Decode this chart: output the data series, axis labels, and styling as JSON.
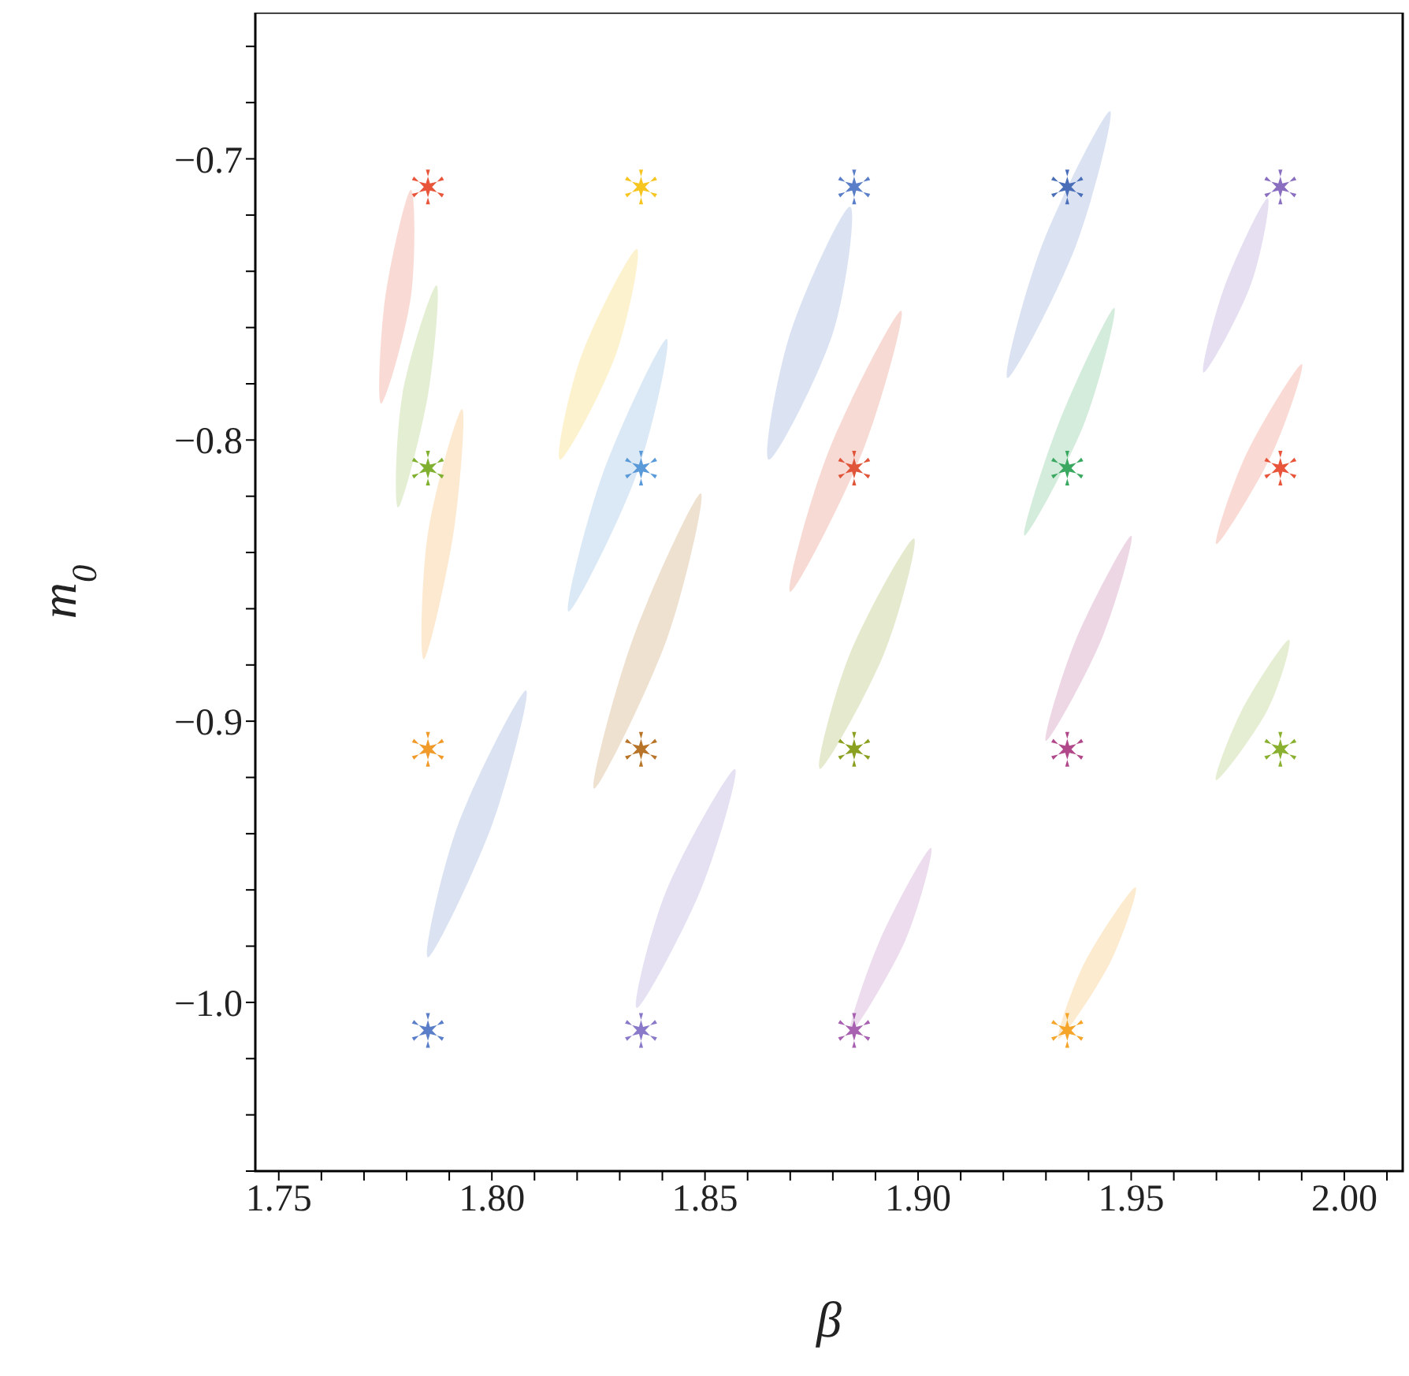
{
  "chart_data": {
    "type": "scatter",
    "xlabel": "β",
    "ylabel": "m$_{0}$",
    "xlim": [
      1.7445,
      2.0137
    ],
    "ylim": [
      -1.06,
      -0.648
    ],
    "xticks": [
      {
        "value": 1.75,
        "label": "1.75"
      },
      {
        "value": 1.76,
        "label": null
      },
      {
        "value": 1.77,
        "label": null
      },
      {
        "value": 1.78,
        "label": null
      },
      {
        "value": 1.79,
        "label": null
      },
      {
        "value": 1.8,
        "label": "1.80"
      },
      {
        "value": 1.81,
        "label": null
      },
      {
        "value": 1.82,
        "label": null
      },
      {
        "value": 1.83,
        "label": null
      },
      {
        "value": 1.84,
        "label": null
      },
      {
        "value": 1.85,
        "label": "1.85"
      },
      {
        "value": 1.86,
        "label": null
      },
      {
        "value": 1.87,
        "label": null
      },
      {
        "value": 1.88,
        "label": null
      },
      {
        "value": 1.89,
        "label": null
      },
      {
        "value": 1.9,
        "label": "1.90"
      },
      {
        "value": 1.91,
        "label": null
      },
      {
        "value": 1.92,
        "label": null
      },
      {
        "value": 1.93,
        "label": null
      },
      {
        "value": 1.94,
        "label": null
      },
      {
        "value": 1.95,
        "label": "1.95"
      },
      {
        "value": 1.96,
        "label": null
      },
      {
        "value": 1.97,
        "label": null
      },
      {
        "value": 1.98,
        "label": null
      },
      {
        "value": 1.99,
        "label": null
      },
      {
        "value": 2.0,
        "label": "2.00"
      },
      {
        "value": 2.01,
        "label": null
      }
    ],
    "yticks": [
      {
        "value": -1.06,
        "label": null
      },
      {
        "value": -1.04,
        "label": null
      },
      {
        "value": -1.02,
        "label": null
      },
      {
        "value": -1.0,
        "label": "−1.0"
      },
      {
        "value": -0.98,
        "label": null
      },
      {
        "value": -0.96,
        "label": null
      },
      {
        "value": -0.94,
        "label": null
      },
      {
        "value": -0.92,
        "label": null
      },
      {
        "value": -0.9,
        "label": "−0.9"
      },
      {
        "value": -0.88,
        "label": null
      },
      {
        "value": -0.86,
        "label": null
      },
      {
        "value": -0.84,
        "label": null
      },
      {
        "value": -0.82,
        "label": null
      },
      {
        "value": -0.8,
        "label": "−0.8"
      },
      {
        "value": -0.78,
        "label": null
      },
      {
        "value": -0.76,
        "label": null
      },
      {
        "value": -0.74,
        "label": null
      },
      {
        "value": -0.72,
        "label": null
      },
      {
        "value": -0.7,
        "label": "−0.7"
      },
      {
        "value": -0.68,
        "label": null
      },
      {
        "value": -0.66,
        "label": null
      }
    ],
    "grid": false,
    "legend": false,
    "series": [
      {
        "type": "area",
        "color": "#e8553a",
        "x": [
          1.781,
          1.781,
          1.774,
          1.775
        ],
        "values": [
          -0.711,
          -0.749,
          -0.787,
          -0.749
        ]
      },
      {
        "type": "area",
        "color": "#7fb030",
        "x": [
          1.787,
          1.785,
          1.778,
          1.779
        ],
        "values": [
          -0.745,
          -0.784,
          -0.824,
          -0.784
        ]
      },
      {
        "type": "area",
        "color": "#f09a2a",
        "x": [
          1.793,
          1.791,
          1.784,
          1.785
        ],
        "values": [
          -0.789,
          -0.833,
          -0.878,
          -0.833
        ]
      },
      {
        "type": "area",
        "color": "#5a7fc8",
        "x": [
          1.808,
          1.8,
          1.785,
          1.792
        ],
        "values": [
          -0.889,
          -0.937,
          -0.984,
          -0.937
        ]
      },
      {
        "type": "area",
        "color": "#f7c520",
        "x": [
          1.834,
          1.829,
          1.816,
          1.821
        ],
        "values": [
          -0.732,
          -0.77,
          -0.807,
          -0.77
        ]
      },
      {
        "type": "area",
        "color": "#5a9ad8",
        "x": [
          1.841,
          1.834,
          1.818,
          1.826
        ],
        "values": [
          -0.764,
          -0.812,
          -0.861,
          -0.812
        ]
      },
      {
        "type": "area",
        "color": "#b8752a",
        "x": [
          1.849,
          1.841,
          1.824,
          1.833
        ],
        "values": [
          -0.819,
          -0.871,
          -0.924,
          -0.871
        ]
      },
      {
        "type": "area",
        "color": "#8a78c8",
        "x": [
          1.857,
          1.849,
          1.834,
          1.841
        ],
        "values": [
          -0.917,
          -0.96,
          -1.002,
          -0.96
        ]
      },
      {
        "type": "area",
        "color": "#5a7fc8",
        "x": [
          1.884,
          1.88,
          1.865,
          1.87
        ],
        "values": [
          -0.717,
          -0.762,
          -0.807,
          -0.762
        ]
      },
      {
        "type": "area",
        "color": "#e0553a",
        "x": [
          1.896,
          1.887,
          1.87,
          1.879
        ],
        "values": [
          -0.754,
          -0.804,
          -0.854,
          -0.804
        ]
      },
      {
        "type": "area",
        "color": "#8aa020",
        "x": [
          1.899,
          1.892,
          1.877,
          1.884
        ],
        "values": [
          -0.835,
          -0.876,
          -0.917,
          -0.876
        ]
      },
      {
        "type": "area",
        "color": "#a860b0",
        "x": [
          1.903,
          1.897,
          1.884,
          1.891
        ],
        "values": [
          -0.945,
          -0.978,
          -1.011,
          -0.978
        ]
      },
      {
        "type": "area",
        "color": "#5a7fc8",
        "x": [
          1.945,
          1.937,
          1.921,
          1.929
        ],
        "values": [
          -0.683,
          -0.731,
          -0.778,
          -0.731
        ]
      },
      {
        "type": "area",
        "color": "#3aa860",
        "x": [
          1.946,
          1.939,
          1.925,
          1.933
        ],
        "values": [
          -0.753,
          -0.794,
          -0.834,
          -0.794
        ]
      },
      {
        "type": "area",
        "color": "#b0488a",
        "x": [
          1.95,
          1.943,
          1.93,
          1.937
        ],
        "values": [
          -0.834,
          -0.871,
          -0.907,
          -0.871
        ]
      },
      {
        "type": "area",
        "color": "#f5a52a",
        "x": [
          1.951,
          1.945,
          1.933,
          1.939
        ],
        "values": [
          -0.959,
          -0.986,
          -1.013,
          -0.986
        ]
      },
      {
        "type": "area",
        "color": "#8a6fc0",
        "x": [
          1.982,
          1.978,
          1.967,
          1.972
        ],
        "values": [
          -0.714,
          -0.745,
          -0.776,
          -0.745
        ]
      },
      {
        "type": "area",
        "color": "#e8553a",
        "x": [
          1.99,
          1.983,
          1.97,
          1.977
        ],
        "values": [
          -0.773,
          -0.805,
          -0.837,
          -0.805
        ]
      },
      {
        "type": "area",
        "color": "#8ab030",
        "x": [
          1.987,
          1.982,
          1.97,
          1.976
        ],
        "values": [
          -0.871,
          -0.896,
          -0.921,
          -0.896
        ]
      },
      {
        "marker": "cross",
        "x": [
          1.785,
          1.835,
          1.885,
          1.935,
          1.985,
          1.785,
          1.835,
          1.885,
          1.935,
          1.985,
          1.785,
          1.835,
          1.885,
          1.935,
          1.985,
          1.785,
          1.835,
          1.885,
          1.935
        ],
        "values": [
          -0.71,
          -0.71,
          -0.71,
          -0.71,
          -0.71,
          -0.81,
          -0.81,
          -0.81,
          -0.81,
          -0.81,
          -0.91,
          -0.91,
          -0.91,
          -0.91,
          -0.91,
          -1.01,
          -1.01,
          -1.01,
          -1.01
        ],
        "colors": [
          "#e8553a",
          "#f7c520",
          "#5a7fc8",
          "#4a6fb8",
          "#8a6fc0",
          "#7fb030",
          "#5a9ad8",
          "#e0553a",
          "#3aa860",
          "#e8553a",
          "#f09a2a",
          "#b8752a",
          "#8aa020",
          "#b0488a",
          "#8ab030",
          "#5a7fc8",
          "#8a78c8",
          "#a860b0",
          "#f5a52a"
        ]
      }
    ]
  }
}
